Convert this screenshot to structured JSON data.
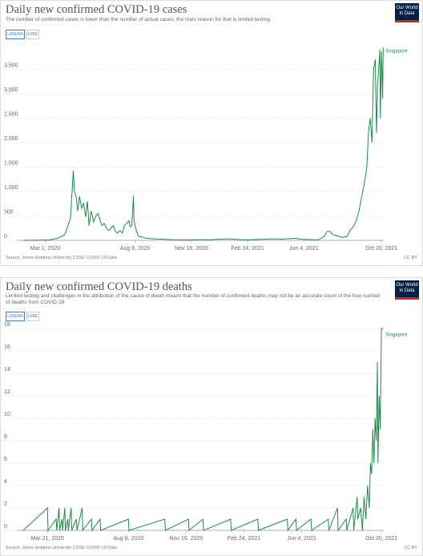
{
  "chart_data": [
    {
      "type": "line",
      "title": "Daily new confirmed COVID-19 cases",
      "subtitle": "The number of confirmed cases is lower than the number of actual cases; the main reason for that is limited testing.",
      "buttons": [
        "LINEAR",
        "LOG"
      ],
      "logo": "Our World in Data",
      "source": "Source: Johns Hopkins University CSSE COVID-19 Data",
      "license": "CC BY",
      "log": false,
      "grid": true,
      "xlim": [
        "2020-01-22",
        "2021-10-24"
      ],
      "xticks": [
        {
          "value": "2020-03-01",
          "label": "Mar 1, 2020"
        },
        {
          "value": "2020-08-08",
          "label": "Aug 8, 2020"
        },
        {
          "value": "2020-11-16",
          "label": "Nov 16, 2020"
        },
        {
          "value": "2021-02-24",
          "label": "Feb 24, 2021"
        },
        {
          "value": "2021-06-04",
          "label": "Jun 4, 2021"
        },
        {
          "value": "2021-10-20",
          "label": "Oct 20, 2021"
        }
      ],
      "ylim": [
        0,
        4000
      ],
      "yticks": [
        0,
        500,
        {
          "value": 1000,
          "label": "1,000"
        },
        {
          "value": 1500,
          "label": "1,500"
        },
        {
          "value": 2000,
          "label": "2,000"
        },
        {
          "value": 2500,
          "label": "2,500"
        },
        {
          "value": 3000,
          "label": "3,000"
        },
        {
          "value": 3500,
          "label": "3,500"
        }
      ],
      "x": [
        "2020-01-22",
        "2020-02-15",
        "2020-03-10",
        "2020-03-25",
        "2020-04-05",
        "2020-04-10",
        "2020-04-15",
        "2020-04-20",
        "2020-04-22",
        "2020-04-25",
        "2020-04-28",
        "2020-05-01",
        "2020-05-05",
        "2020-05-08",
        "2020-05-12",
        "2020-05-15",
        "2020-05-18",
        "2020-05-22",
        "2020-05-26",
        "2020-05-30",
        "2020-06-03",
        "2020-06-07",
        "2020-06-10",
        "2020-06-14",
        "2020-06-18",
        "2020-06-22",
        "2020-06-26",
        "2020-06-30",
        "2020-07-04",
        "2020-07-08",
        "2020-07-12",
        "2020-07-16",
        "2020-07-20",
        "2020-07-24",
        "2020-07-28",
        "2020-07-30",
        "2020-08-02",
        "2020-08-05",
        "2020-08-06",
        "2020-08-10",
        "2020-08-14",
        "2020-08-20",
        "2020-08-28",
        "2020-09-10",
        "2020-09-30",
        "2020-10-20",
        "2020-11-16",
        "2020-12-20",
        "2021-01-20",
        "2021-02-10",
        "2021-02-24",
        "2021-03-20",
        "2021-04-10",
        "2021-04-25",
        "2021-05-10",
        "2021-05-20",
        "2021-06-01",
        "2021-06-15",
        "2021-06-30",
        "2021-07-10",
        "2021-07-15",
        "2021-07-20",
        "2021-07-25",
        "2021-08-01",
        "2021-08-10",
        "2021-08-20",
        "2021-08-25",
        "2021-09-01",
        "2021-09-05",
        "2021-09-10",
        "2021-09-15",
        "2021-09-20",
        "2021-09-24",
        "2021-09-27",
        "2021-09-30",
        "2021-10-03",
        "2021-10-06",
        "2021-10-09",
        "2021-10-11",
        "2021-10-13",
        "2021-10-15",
        "2021-10-17",
        "2021-10-18",
        "2021-10-20",
        "2021-10-22",
        "2021-10-23"
      ],
      "series": [
        {
          "name": "Singapore",
          "color": "#1f8a4c",
          "values": [
            0,
            5,
            10,
            50,
            120,
            290,
            450,
            1426,
            1000,
            900,
            600,
            900,
            650,
            770,
            480,
            800,
            300,
            600,
            380,
            500,
            550,
            400,
            300,
            350,
            250,
            200,
            250,
            300,
            180,
            150,
            200,
            150,
            300,
            350,
            400,
            280,
            300,
            908,
            400,
            200,
            80,
            70,
            40,
            30,
            20,
            10,
            10,
            15,
            30,
            15,
            10,
            20,
            30,
            25,
            35,
            40,
            20,
            15,
            10,
            80,
            180,
            190,
            120,
            100,
            60,
            80,
            200,
            300,
            400,
            600,
            900,
            1200,
            1500,
            2236,
            2500,
            2000,
            3500,
            3703,
            2200,
            3190,
            3500,
            3900,
            2500,
            3862,
            2900,
            3950
          ]
        }
      ]
    },
    {
      "type": "line",
      "title": "Daily new confirmed COVID-19 deaths",
      "subtitle": "Limited testing and challenges in the attribution of the cause of death means that the number of confirmed deaths may not be an accurate count of the true number of deaths from COVID-19.",
      "buttons": [
        "LINEAR",
        "LOG"
      ],
      "logo": "Our World in Data",
      "source": "Source: Johns Hopkins University CSSE COVID-19 Data",
      "license": "CC BY",
      "log": false,
      "grid": true,
      "xlim": [
        "2020-02-08",
        "2021-10-24"
      ],
      "xticks": [
        {
          "value": "2020-03-21",
          "label": "Mar 21, 2020"
        },
        {
          "value": "2020-08-08",
          "label": "Aug 8, 2020"
        },
        {
          "value": "2020-11-16",
          "label": "Nov 16, 2020"
        },
        {
          "value": "2021-02-24",
          "label": "Feb 24, 2021"
        },
        {
          "value": "2021-06-04",
          "label": "Jun 4, 2021"
        },
        {
          "value": "2021-10-20",
          "label": "Oct 20, 2021"
        }
      ],
      "ylim": [
        0,
        18
      ],
      "yticks": [
        0,
        2,
        4,
        6,
        8,
        10,
        12,
        14,
        16,
        18
      ],
      "x": [
        "2020-02-08",
        "2020-03-21",
        "2020-03-22",
        "2020-04-05",
        "2020-04-06",
        "2020-04-10",
        "2020-04-11",
        "2020-04-15",
        "2020-04-16",
        "2020-04-20",
        "2020-04-21",
        "2020-04-25",
        "2020-04-26",
        "2020-05-01",
        "2020-05-02",
        "2020-05-10",
        "2020-05-11",
        "2020-05-20",
        "2020-05-21",
        "2020-06-05",
        "2020-06-06",
        "2020-06-20",
        "2020-06-21",
        "2020-08-08",
        "2020-08-09",
        "2020-10-10",
        "2020-10-11",
        "2020-11-20",
        "2020-11-21",
        "2020-12-15",
        "2020-12-16",
        "2021-02-01",
        "2021-02-02",
        "2021-03-20",
        "2021-03-21",
        "2021-05-10",
        "2021-05-11",
        "2021-05-25",
        "2021-05-26",
        "2021-06-20",
        "2021-06-21",
        "2021-07-20",
        "2021-07-21",
        "2021-08-05",
        "2021-08-06",
        "2021-08-20",
        "2021-08-21",
        "2021-09-01",
        "2021-09-02",
        "2021-09-08",
        "2021-09-09",
        "2021-09-14",
        "2021-09-17",
        "2021-09-20",
        "2021-09-23",
        "2021-09-26",
        "2021-09-29",
        "2021-10-01",
        "2021-10-03",
        "2021-10-05",
        "2021-10-07",
        "2021-10-09",
        "2021-10-11",
        "2021-10-13",
        "2021-10-14",
        "2021-10-16",
        "2021-10-18",
        "2021-10-20",
        "2021-10-23"
      ],
      "series": [
        {
          "name": "Singapore",
          "color": "#1f8a4c",
          "values": [
            0,
            2,
            0,
            1,
            0,
            2,
            0,
            1,
            0,
            2,
            0,
            1,
            0,
            2,
            0,
            1,
            0,
            2,
            0,
            1,
            0,
            1,
            0,
            1,
            0,
            1,
            0,
            1,
            0,
            1,
            0,
            1,
            0,
            1,
            0,
            1,
            0,
            1,
            0,
            1,
            0,
            1,
            0,
            2,
            0,
            1,
            0,
            2,
            0,
            3,
            1,
            2,
            0,
            3,
            1,
            4,
            2,
            6,
            5,
            9,
            6,
            10,
            8,
            15,
            6,
            12,
            9,
            18,
            18
          ]
        }
      ]
    }
  ]
}
